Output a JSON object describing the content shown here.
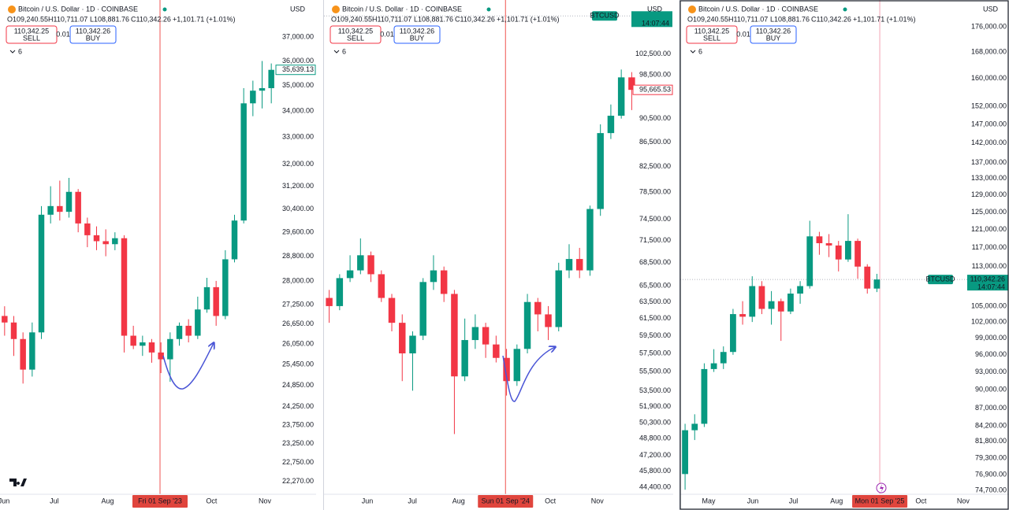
{
  "chart_data": [
    {
      "type": "candlestick",
      "title": "Bitcoin / U.S. Dollar · 1D · COINBASE",
      "quote": [
        "O109,240.55",
        "H110,711.07",
        "L108,881.76",
        "C110,342.26",
        "+1,101.71 (+1.01%)"
      ],
      "sell": {
        "price": "110,342.25",
        "label": "SELL"
      },
      "spread": "0.01",
      "buy": {
        "price": "110,342.26",
        "label": "BUY"
      },
      "indicators": "6",
      "currency": "USD",
      "log": true,
      "up_color": "#089981",
      "down_color": "#f23645",
      "categories": [
        null,
        null,
        null,
        null,
        null,
        null,
        null,
        null,
        null,
        null,
        null,
        null,
        null,
        null,
        null,
        null,
        null,
        null,
        null,
        null,
        null,
        null,
        null,
        null,
        null,
        null,
        null,
        null,
        null,
        null
      ],
      "xticks": [
        {
          "value": -0.07,
          "label": "Jun"
        },
        {
          "value": 5.4,
          "label": "Jul"
        },
        {
          "value": 11.2,
          "label": "Aug"
        },
        {
          "value": 22.5,
          "label": "Oct"
        },
        {
          "value": 28.3,
          "label": "Nov"
        }
      ],
      "marker": {
        "value": 16.9,
        "label": "Fri 01 Sep '23"
      },
      "open": [
        26900,
        26700,
        26200,
        25300,
        26400,
        30200,
        30500,
        30300,
        31000,
        29900,
        29500,
        29300,
        29200,
        29400,
        26300,
        26000,
        26100,
        25800,
        25600,
        26200,
        26600,
        26300,
        27100,
        27800,
        26900,
        28700,
        30000,
        34300,
        34800,
        34900
      ],
      "high": [
        27200,
        26900,
        26400,
        26700,
        30500,
        31200,
        31400,
        31500,
        31100,
        30100,
        29800,
        29700,
        29600,
        29500,
        26600,
        26300,
        26200,
        26100,
        26400,
        26700,
        26800,
        27500,
        28100,
        28000,
        29000,
        30200,
        34900,
        35200,
        36000,
        35900
      ],
      "low": [
        26300,
        25700,
        24900,
        25100,
        26200,
        29900,
        30000,
        30100,
        29600,
        29100,
        29000,
        28800,
        29000,
        25800,
        25900,
        25700,
        25500,
        25200,
        24950,
        26000,
        26100,
        26200,
        27000,
        26600,
        26800,
        28600,
        29900,
        33800,
        34100,
        34300
      ],
      "close": [
        26700,
        26200,
        25300,
        26400,
        30200,
        30500,
        30300,
        31000,
        29900,
        29500,
        29300,
        29200,
        29400,
        26300,
        26000,
        26100,
        25800,
        25600,
        26200,
        26600,
        26300,
        27100,
        27800,
        26900,
        28700,
        30000,
        34300,
        34800,
        34900,
        35639.13
      ],
      "last_label": "35,639.13",
      "ylim": [
        22000,
        38600
      ],
      "yticks": [
        {
          "value": 37000,
          "label": "37,000.00"
        },
        {
          "value": 36000,
          "label": "36,000.00"
        },
        {
          "value": 35000,
          "label": "35,000.00"
        },
        {
          "value": 34000,
          "label": "34,000.00"
        },
        {
          "value": 33000,
          "label": "33,000.00"
        },
        {
          "value": 32000,
          "label": "32,000.00"
        },
        {
          "value": 31200,
          "label": "31,200.00"
        },
        {
          "value": 30400,
          "label": "30,400.00"
        },
        {
          "value": 29600,
          "label": "29,600.00"
        },
        {
          "value": 28800,
          "label": "28,800.00"
        },
        {
          "value": 28000,
          "label": "28,000.00"
        },
        {
          "value": 27250,
          "label": "27,250.00"
        },
        {
          "value": 26650,
          "label": "26,650.00"
        },
        {
          "value": 26050,
          "label": "26,050.00"
        },
        {
          "value": 25450,
          "label": "25,450.00"
        },
        {
          "value": 24850,
          "label": "24,850.00"
        },
        {
          "value": 24250,
          "label": "24,250.00"
        },
        {
          "value": 23750,
          "label": "23,750.00"
        },
        {
          "value": 23250,
          "label": "23,250.00"
        },
        {
          "value": 22750,
          "label": "22,750.00"
        },
        {
          "value": 22270,
          "label": "22,270.00"
        }
      ]
    },
    {
      "type": "candlestick",
      "title": "Bitcoin / U.S. Dollar · 1D · COINBASE",
      "quote": [
        "O109,240.55",
        "H110,711.07",
        "L108,881.76",
        "C110,342.26",
        "+1,101.71 (+1.01%)"
      ],
      "sell": {
        "price": "110,342.25",
        "label": "SELL"
      },
      "spread": "0.01",
      "buy": {
        "price": "110,342.26",
        "label": "BUY"
      },
      "indicators": "6",
      "currency": "USD",
      "log": true,
      "up_color": "#089981",
      "down_color": "#f23645",
      "categories": [
        null,
        null,
        null,
        null,
        null,
        null,
        null,
        null,
        null,
        null,
        null,
        null,
        null,
        null,
        null,
        null,
        null,
        null,
        null,
        null,
        null,
        null,
        null,
        null,
        null,
        null,
        null,
        null,
        null,
        null
      ],
      "xticks": [
        {
          "value": 3.66,
          "label": "Jun"
        },
        {
          "value": 7.97,
          "label": "Jul"
        },
        {
          "value": 12.4,
          "label": "Aug"
        },
        {
          "value": 21.2,
          "label": "Oct"
        },
        {
          "value": 25.7,
          "label": "Nov"
        }
      ],
      "marker": {
        "value": 16.9,
        "label": "Sun 01 Sep '24"
      },
      "open": [
        64000,
        63000,
        66500,
        67500,
        69500,
        67000,
        64000,
        61000,
        57500,
        59500,
        66000,
        67500,
        64500,
        55000,
        59000,
        60500,
        58500,
        57000,
        54500,
        58000,
        63500,
        62000,
        60500,
        67500,
        69000,
        67500,
        76000,
        88000,
        91000,
        98000
      ],
      "high": [
        65000,
        67000,
        69500,
        71800,
        70000,
        67500,
        64500,
        62000,
        60000,
        66500,
        69500,
        68000,
        65000,
        61500,
        62000,
        61000,
        59500,
        58000,
        58500,
        64500,
        64000,
        63000,
        68500,
        71000,
        70500,
        76500,
        89500,
        93000,
        99500,
        99000
      ],
      "low": [
        61000,
        62500,
        66000,
        67000,
        66000,
        63500,
        60000,
        54500,
        53500,
        59000,
        65000,
        63500,
        49200,
        54500,
        58000,
        57000,
        56500,
        53000,
        54000,
        57500,
        60000,
        59000,
        60000,
        66500,
        66500,
        66800,
        75000,
        87000,
        90500,
        92000
      ],
      "close": [
        63000,
        66500,
        67500,
        69500,
        67000,
        64000,
        61000,
        57500,
        59500,
        66000,
        67500,
        64500,
        55000,
        59000,
        60500,
        58500,
        57000,
        54500,
        58000,
        63500,
        62000,
        60500,
        67500,
        69000,
        67500,
        76000,
        88000,
        91000,
        98000,
        95665.53
      ],
      "last_label": "95,665.53",
      "tag": {
        "symbol": "BTCUSD",
        "time": "14:07:44",
        "value": 110342.26
      },
      "ylim": [
        44000,
        113800
      ],
      "yticks": [
        {
          "value": 102500,
          "label": "102,500.00"
        },
        {
          "value": 98500,
          "label": "98,500.00"
        },
        {
          "value": 90500,
          "label": "90,500.00"
        },
        {
          "value": 86500,
          "label": "86,500.00"
        },
        {
          "value": 82500,
          "label": "82,500.00"
        },
        {
          "value": 78500,
          "label": "78,500.00"
        },
        {
          "value": 74500,
          "label": "74,500.00"
        },
        {
          "value": 71500,
          "label": "71,500.00"
        },
        {
          "value": 68500,
          "label": "68,500.00"
        },
        {
          "value": 65500,
          "label": "65,500.00"
        },
        {
          "value": 63500,
          "label": "63,500.00"
        },
        {
          "value": 61500,
          "label": "61,500.00"
        },
        {
          "value": 59500,
          "label": "59,500.00"
        },
        {
          "value": 57500,
          "label": "57,500.00"
        },
        {
          "value": 55500,
          "label": "55,500.00"
        },
        {
          "value": 53500,
          "label": "53,500.00"
        },
        {
          "value": 51900,
          "label": "51,900.00"
        },
        {
          "value": 50300,
          "label": "50,300.00"
        },
        {
          "value": 48800,
          "label": "48,800.00"
        },
        {
          "value": 47200,
          "label": "47,200.00"
        },
        {
          "value": 45800,
          "label": "45,800.00"
        },
        {
          "value": 44400,
          "label": "44,400.00"
        }
      ]
    },
    {
      "type": "candlestick",
      "title": "Bitcoin / U.S. Dollar · 1D · COINBASE",
      "quote": [
        "O109,240.55",
        "H110,711.07",
        "L108,881.76",
        "C110,342.26",
        "+1,101.71 (+1.01%)"
      ],
      "sell": {
        "price": "110,342.25",
        "label": "SELL"
      },
      "spread": "0.01",
      "buy": {
        "price": "110,342.26",
        "label": "BUY"
      },
      "indicators": "6",
      "currency": "USD",
      "log": true,
      "up_color": "#089981",
      "down_color": "#f23645",
      "categories": [
        null,
        null,
        null,
        null,
        null,
        null,
        null,
        null,
        null,
        null,
        null,
        null,
        null,
        null,
        null,
        null,
        null,
        null,
        null,
        null,
        null,
        null,
        null,
        null,
        null,
        null,
        null,
        null,
        null,
        null
      ],
      "xticks": [
        {
          "value": 2.46,
          "label": "May"
        },
        {
          "value": 7.06,
          "label": "Jun"
        },
        {
          "value": 11.3,
          "label": "Jul"
        },
        {
          "value": 15.8,
          "label": "Aug"
        },
        {
          "value": 24.6,
          "label": "Oct"
        },
        {
          "value": 29.0,
          "label": "Nov"
        }
      ],
      "marker": {
        "value": 20.3,
        "label": "Mon 01 Sep '25"
      },
      "open": [
        77000,
        83500,
        84500,
        93500,
        94500,
        96500,
        103500,
        103000,
        109000,
        104500,
        106000,
        104000,
        107500,
        109000,
        119500,
        118000,
        117500,
        114500,
        118500,
        113000,
        108500,
        null,
        null,
        null,
        null,
        null,
        null,
        null,
        null,
        null
      ],
      "high": [
        84500,
        86000,
        94500,
        97000,
        97500,
        104500,
        106000,
        111000,
        110000,
        108000,
        106500,
        108500,
        110000,
        123000,
        120500,
        120000,
        118500,
        124500,
        119000,
        113500,
        111500,
        null,
        null,
        null,
        null,
        null,
        null,
        null,
        null,
        null
      ],
      "low": [
        74800,
        82000,
        84000,
        93000,
        93500,
        96000,
        101500,
        102000,
        103500,
        101500,
        98500,
        103500,
        105500,
        108500,
        115500,
        115000,
        112000,
        114000,
        110500,
        107500,
        107800,
        null,
        null,
        null,
        null,
        null,
        null,
        null,
        null,
        null
      ],
      "close": [
        83500,
        84500,
        93500,
        94500,
        96500,
        103500,
        103000,
        109000,
        104500,
        106000,
        104000,
        107500,
        109000,
        119500,
        118000,
        117500,
        114500,
        118500,
        113000,
        108500,
        110342.26,
        null,
        null,
        null,
        null,
        null,
        null,
        null,
        null,
        null
      ],
      "tag": {
        "symbol": "BTCUSD",
        "label": "110,342.26",
        "time": "14:07:44",
        "value": 110342.26
      },
      "ylim": [
        74500,
        185000
      ],
      "yticks": [
        {
          "value": 176000,
          "label": "176,000.00"
        },
        {
          "value": 168000,
          "label": "168,000.00"
        },
        {
          "value": 160000,
          "label": "160,000.00"
        },
        {
          "value": 152000,
          "label": "152,000.00"
        },
        {
          "value": 147000,
          "label": "147,000.00"
        },
        {
          "value": 142000,
          "label": "142,000.00"
        },
        {
          "value": 137000,
          "label": "137,000.00"
        },
        {
          "value": 133000,
          "label": "133,000.00"
        },
        {
          "value": 129000,
          "label": "129,000.00"
        },
        {
          "value": 125000,
          "label": "125,000.00"
        },
        {
          "value": 121000,
          "label": "121,000.00"
        },
        {
          "value": 117000,
          "label": "117,000.00"
        },
        {
          "value": 113000,
          "label": "113,000.00"
        },
        {
          "value": 105000,
          "label": "105,000.00"
        },
        {
          "value": 102000,
          "label": "102,000.00"
        },
        {
          "value": 99000,
          "label": "99,000.00"
        },
        {
          "value": 96000,
          "label": "96,000.00"
        },
        {
          "value": 93000,
          "label": "93,000.00"
        },
        {
          "value": 90000,
          "label": "90,000.00"
        },
        {
          "value": 87000,
          "label": "87,000.00"
        },
        {
          "value": 84200,
          "label": "84,200.00"
        },
        {
          "value": 81800,
          "label": "81,800.00"
        },
        {
          "value": 79300,
          "label": "79,300.00"
        },
        {
          "value": 76900,
          "label": "76,900.00"
        },
        {
          "value": 74700,
          "label": "74,700.00"
        }
      ]
    }
  ]
}
